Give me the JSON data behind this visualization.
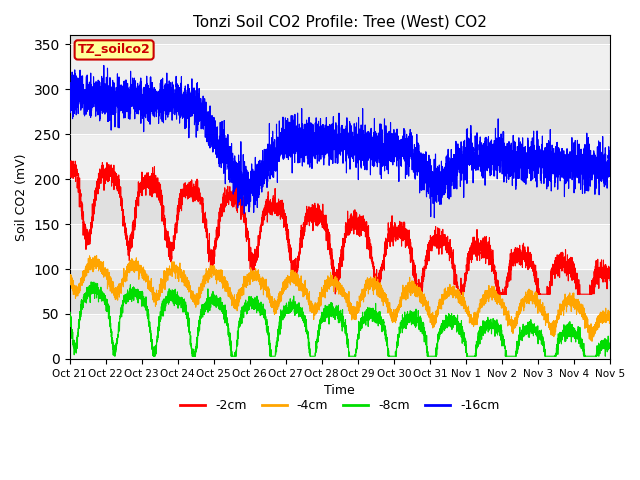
{
  "title": "Tonzi Soil CO2 Profile: Tree (West) CO2",
  "ylabel": "Soil CO2 (mV)",
  "xlabel": "Time",
  "annotation": "TZ_soilco2",
  "legend_labels": [
    "-2cm",
    "-4cm",
    "-8cm",
    "-16cm"
  ],
  "legend_colors": [
    "#ff0000",
    "#ffa500",
    "#00dd00",
    "#0000ff"
  ],
  "ylim": [
    0,
    360
  ],
  "yticks": [
    0,
    50,
    100,
    150,
    200,
    250,
    300,
    350
  ],
  "xtick_labels": [
    "Oct 21",
    "Oct 22",
    "Oct 23",
    "Oct 24",
    "Oct 25",
    "Oct 26",
    "Oct 27",
    "Oct 28",
    "Oct 29",
    "Oct 30",
    "Oct 31",
    "Nov 1",
    "Nov 2",
    "Nov 3",
    "Nov 4",
    "Nov 5"
  ],
  "background_color": "#ffffff",
  "plot_bg_light": "#f0f0f0",
  "plot_bg_dark": "#e0e0e0",
  "title_fontsize": 11,
  "annotation_facecolor": "#ffff99",
  "annotation_edgecolor": "#cc0000",
  "annotation_textcolor": "#cc0000",
  "n_points": 5000,
  "line_width": 0.8
}
